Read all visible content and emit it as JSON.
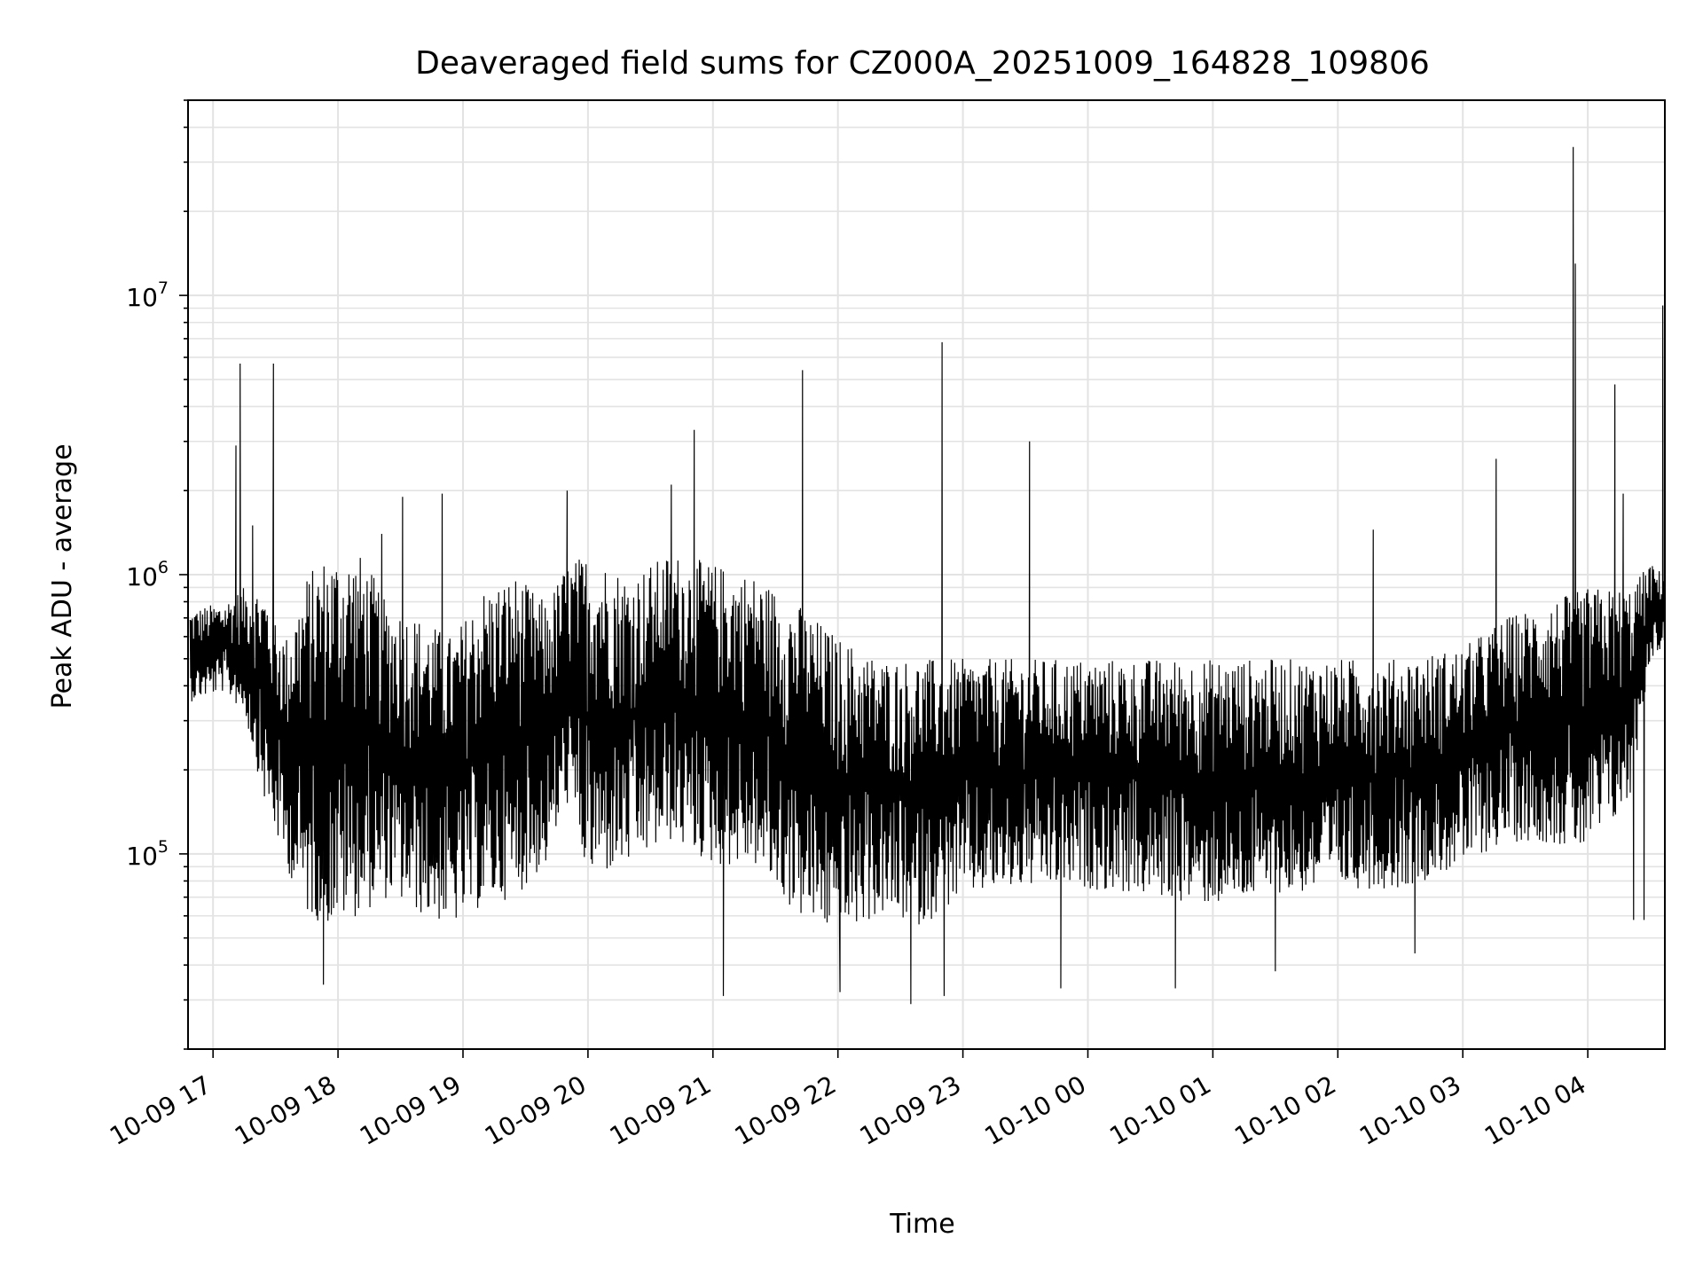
{
  "chart_data": {
    "type": "line",
    "title": "Deaveraged field sums for CZ000A_20251009_164828_109806",
    "xlabel": "Time",
    "ylabel": "Peak ADU - average",
    "yscale": "log",
    "grid": true,
    "x_tick_labels": [
      "10-09 17",
      "10-09 18",
      "10-09 19",
      "10-09 20",
      "10-09 21",
      "10-09 22",
      "10-09 23",
      "10-10 00",
      "10-10 01",
      "10-10 02",
      "10-10 03",
      "10-10 04"
    ],
    "x_ticks": [
      "2025-10-09 17:00",
      "2025-10-09 18:00",
      "2025-10-09 19:00",
      "2025-10-09 20:00",
      "2025-10-09 21:00",
      "2025-10-09 22:00",
      "2025-10-09 23:00",
      "2025-10-10 00:00",
      "2025-10-10 01:00",
      "2025-10-10 02:00",
      "2025-10-10 03:00",
      "2025-10-10 04:00"
    ],
    "xlim": [
      "2025-10-09 16:48",
      "2025-10-10 04:37"
    ],
    "y_tick_labels": [
      {
        "base": "10",
        "exp": "5",
        "value": 100000
      },
      {
        "base": "10",
        "exp": "6",
        "value": 1000000
      },
      {
        "base": "10",
        "exp": "7",
        "value": 10000000
      }
    ],
    "ylim": [
      20000,
      50000000
    ],
    "line_color": "#000000",
    "envelope": {
      "t": [
        "2025-10-09 16:49",
        "2025-10-09 17:05",
        "2025-10-09 17:15",
        "2025-10-09 17:25",
        "2025-10-09 17:35",
        "2025-10-09 17:45",
        "2025-10-09 17:55",
        "2025-10-09 18:10",
        "2025-10-09 18:25",
        "2025-10-09 18:40",
        "2025-10-09 18:55",
        "2025-10-09 19:10",
        "2025-10-09 19:25",
        "2025-10-09 19:40",
        "2025-10-09 19:50",
        "2025-10-09 20:00",
        "2025-10-09 20:20",
        "2025-10-09 20:40",
        "2025-10-09 21:00",
        "2025-10-09 21:20",
        "2025-10-09 21:40",
        "2025-10-09 22:00",
        "2025-10-09 22:20",
        "2025-10-09 22:40",
        "2025-10-09 23:00",
        "2025-10-09 23:30",
        "2025-10-10 00:00",
        "2025-10-10 00:30",
        "2025-10-10 01:00",
        "2025-10-10 01:30",
        "2025-10-10 02:00",
        "2025-10-10 02:30",
        "2025-10-10 03:00",
        "2025-10-10 03:20",
        "2025-10-10 03:40",
        "2025-10-10 04:00",
        "2025-10-10 04:20",
        "2025-10-10 04:30",
        "2025-10-10 04:37"
      ],
      "low": [
        350000,
        380000,
        320000,
        150000,
        90000,
        60000,
        55000,
        60000,
        70000,
        60000,
        55000,
        65000,
        70000,
        90000,
        150000,
        80000,
        90000,
        110000,
        90000,
        90000,
        60000,
        50000,
        60000,
        55000,
        70000,
        75000,
        75000,
        70000,
        65000,
        70000,
        75000,
        75000,
        90000,
        110000,
        110000,
        100000,
        150000,
        500000,
        550000
      ],
      "high": [
        750000,
        800000,
        900000,
        900000,
        600000,
        1000000,
        1200000,
        1200000,
        800000,
        700000,
        600000,
        900000,
        1000000,
        800000,
        1100000,
        1200000,
        1000000,
        1200000,
        1100000,
        1000000,
        800000,
        600000,
        500000,
        500000,
        500000,
        500000,
        500000,
        500000,
        500000,
        500000,
        500000,
        500000,
        550000,
        700000,
        800000,
        900000,
        900000,
        1100000,
        1000000
      ]
    },
    "spikes": [
      {
        "t": "2025-10-09 17:11",
        "v": 2900000
      },
      {
        "t": "2025-10-09 17:13",
        "v": 5700000
      },
      {
        "t": "2025-10-09 17:19",
        "v": 1500000
      },
      {
        "t": "2025-10-09 17:29",
        "v": 5700000
      },
      {
        "t": "2025-10-09 18:21",
        "v": 1400000
      },
      {
        "t": "2025-10-09 18:31",
        "v": 1900000
      },
      {
        "t": "2025-10-09 18:50",
        "v": 1950000
      },
      {
        "t": "2025-10-09 19:50",
        "v": 2000000
      },
      {
        "t": "2025-10-09 20:40",
        "v": 2100000
      },
      {
        "t": "2025-10-09 20:51",
        "v": 3300000
      },
      {
        "t": "2025-10-09 21:43",
        "v": 5400000
      },
      {
        "t": "2025-10-09 22:50",
        "v": 6800000
      },
      {
        "t": "2025-10-09 23:32",
        "v": 3000000
      },
      {
        "t": "2025-10-10 02:17",
        "v": 1450000
      },
      {
        "t": "2025-10-10 03:16",
        "v": 2600000
      },
      {
        "t": "2025-10-10 03:53",
        "v": 34000000
      },
      {
        "t": "2025-10-10 03:54",
        "v": 13000000
      },
      {
        "t": "2025-10-10 04:13",
        "v": 4800000
      },
      {
        "t": "2025-10-10 04:17",
        "v": 1950000
      },
      {
        "t": "2025-10-10 04:36",
        "v": 9200000
      }
    ],
    "dips": [
      {
        "t": "2025-10-09 17:53",
        "v": 34000
      },
      {
        "t": "2025-10-09 21:05",
        "v": 31000
      },
      {
        "t": "2025-10-09 22:01",
        "v": 32000
      },
      {
        "t": "2025-10-09 22:35",
        "v": 29000
      },
      {
        "t": "2025-10-09 22:51",
        "v": 31000
      },
      {
        "t": "2025-10-09 23:47",
        "v": 33000
      },
      {
        "t": "2025-10-10 00:42",
        "v": 33000
      },
      {
        "t": "2025-10-10 01:30",
        "v": 38000
      },
      {
        "t": "2025-10-10 02:37",
        "v": 44000
      },
      {
        "t": "2025-10-10 04:22",
        "v": 58000
      },
      {
        "t": "2025-10-10 04:27",
        "v": 58000
      }
    ]
  }
}
